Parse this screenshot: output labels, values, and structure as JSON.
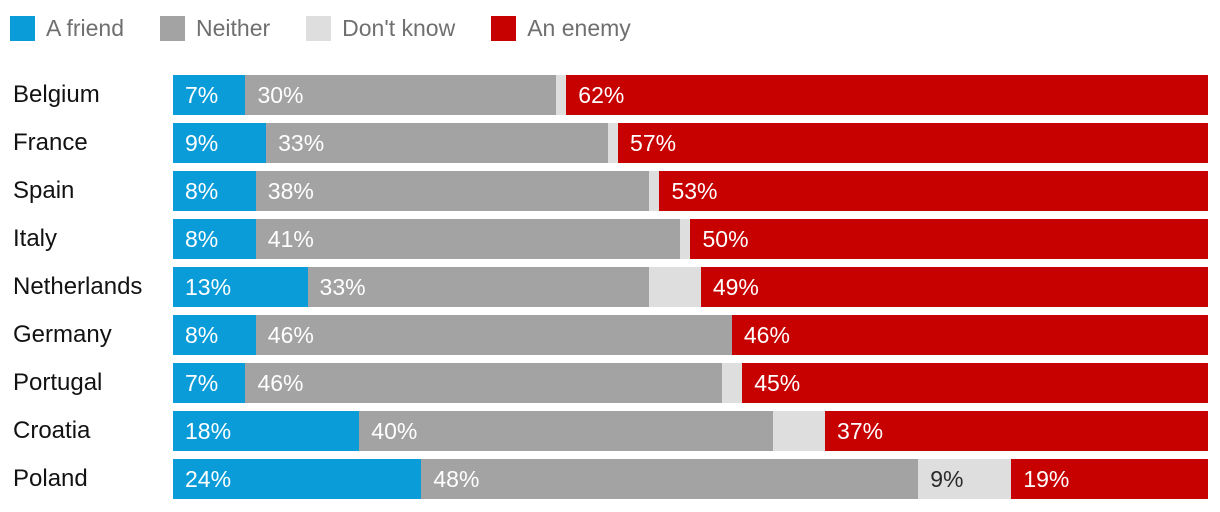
{
  "colors": {
    "friend": "#0a9cd8",
    "neither": "#a3a3a3",
    "dont_know": "#dedede",
    "enemy": "#c70000",
    "country_text": "#121212",
    "legend_text": "#6f6f6f",
    "value_text": "#ffffff",
    "dk_value_text": "#2a2a2a"
  },
  "legend": {
    "items": [
      {
        "label": "A friend",
        "color_key": "friend"
      },
      {
        "label": "Neither",
        "color_key": "neither"
      },
      {
        "label": "Don't know",
        "color_key": "dont_know"
      },
      {
        "label": "An enemy",
        "color_key": "enemy"
      }
    ]
  },
  "chart_data": {
    "type": "bar",
    "stacked": true,
    "orientation": "horizontal",
    "xlim": [
      0,
      100
    ],
    "value_suffix": "%",
    "grid": false,
    "legend_position": "top-left",
    "categories": [
      "A friend",
      "Neither",
      "Don't know",
      "An enemy"
    ],
    "countries": [
      "Belgium",
      "France",
      "Spain",
      "Italy",
      "Netherlands",
      "Germany",
      "Portugal",
      "Croatia",
      "Poland"
    ],
    "series": [
      {
        "name": "A friend",
        "values": [
          7,
          9,
          8,
          8,
          13,
          8,
          7,
          18,
          24
        ]
      },
      {
        "name": "Neither",
        "values": [
          30,
          33,
          38,
          41,
          33,
          46,
          46,
          40,
          48
        ]
      },
      {
        "name": "Don't know",
        "values": [
          1,
          1,
          1,
          1,
          5,
          0,
          2,
          5,
          9
        ]
      },
      {
        "name": "An enemy",
        "values": [
          62,
          57,
          53,
          50,
          49,
          46,
          45,
          37,
          19
        ]
      }
    ],
    "rows": [
      {
        "country": "Belgium",
        "friend": 7,
        "neither": 30,
        "dont_know": 1,
        "enemy": 62,
        "labels": {
          "friend": "7%",
          "neither": "30%",
          "dont_know": "",
          "enemy": "62%"
        }
      },
      {
        "country": "France",
        "friend": 9,
        "neither": 33,
        "dont_know": 1,
        "enemy": 57,
        "labels": {
          "friend": "9%",
          "neither": "33%",
          "dont_know": "",
          "enemy": "57%"
        }
      },
      {
        "country": "Spain",
        "friend": 8,
        "neither": 38,
        "dont_know": 1,
        "enemy": 53,
        "labels": {
          "friend": "8%",
          "neither": "38%",
          "dont_know": "",
          "enemy": "53%"
        }
      },
      {
        "country": "Italy",
        "friend": 8,
        "neither": 41,
        "dont_know": 1,
        "enemy": 50,
        "labels": {
          "friend": "8%",
          "neither": "41%",
          "dont_know": "",
          "enemy": "50%"
        }
      },
      {
        "country": "Netherlands",
        "friend": 13,
        "neither": 33,
        "dont_know": 5,
        "enemy": 49,
        "labels": {
          "friend": "13%",
          "neither": "33%",
          "dont_know": "",
          "enemy": "49%"
        }
      },
      {
        "country": "Germany",
        "friend": 8,
        "neither": 46,
        "dont_know": 0,
        "enemy": 46,
        "labels": {
          "friend": "8%",
          "neither": "46%",
          "dont_know": "",
          "enemy": "46%"
        }
      },
      {
        "country": "Portugal",
        "friend": 7,
        "neither": 46,
        "dont_know": 2,
        "enemy": 45,
        "labels": {
          "friend": "7%",
          "neither": "46%",
          "dont_know": "",
          "enemy": "45%"
        }
      },
      {
        "country": "Croatia",
        "friend": 18,
        "neither": 40,
        "dont_know": 5,
        "enemy": 37,
        "labels": {
          "friend": "18%",
          "neither": "40%",
          "dont_know": "",
          "enemy": "37%"
        }
      },
      {
        "country": "Poland",
        "friend": 24,
        "neither": 48,
        "dont_know": 9,
        "enemy": 19,
        "labels": {
          "friend": "24%",
          "neither": "48%",
          "dont_know": "9%",
          "enemy": "19%"
        }
      }
    ]
  }
}
